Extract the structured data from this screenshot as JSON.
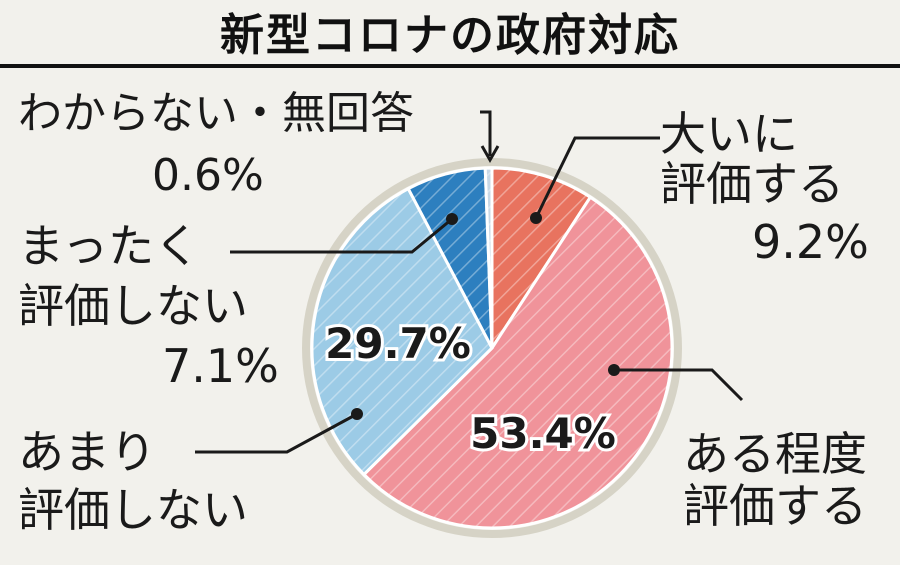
{
  "chart_data": {
    "type": "pie",
    "title": "新型コロナの政府対応",
    "slices": [
      {
        "label_lines": [
          "大いに",
          "評価する"
        ],
        "value_label": "9.2%",
        "value": 9.2,
        "color": "#e8735f"
      },
      {
        "label_lines": [
          "ある程度",
          "評価する"
        ],
        "value_label": "53.4%",
        "value": 53.4,
        "color": "#f0939a"
      },
      {
        "label_lines": [
          "あまり",
          "評価しない"
        ],
        "value_label": "29.7%",
        "value": 29.7,
        "color": "#9ccbe6"
      },
      {
        "label_lines": [
          "まったく",
          "評価しない"
        ],
        "value_label": "7.1%",
        "value": 7.1,
        "color": "#2d7fbf"
      },
      {
        "label_lines": [
          "わからない・無回答"
        ],
        "value_label": "0.6%",
        "value": 0.6,
        "color": "#c8d8e6"
      }
    ]
  }
}
